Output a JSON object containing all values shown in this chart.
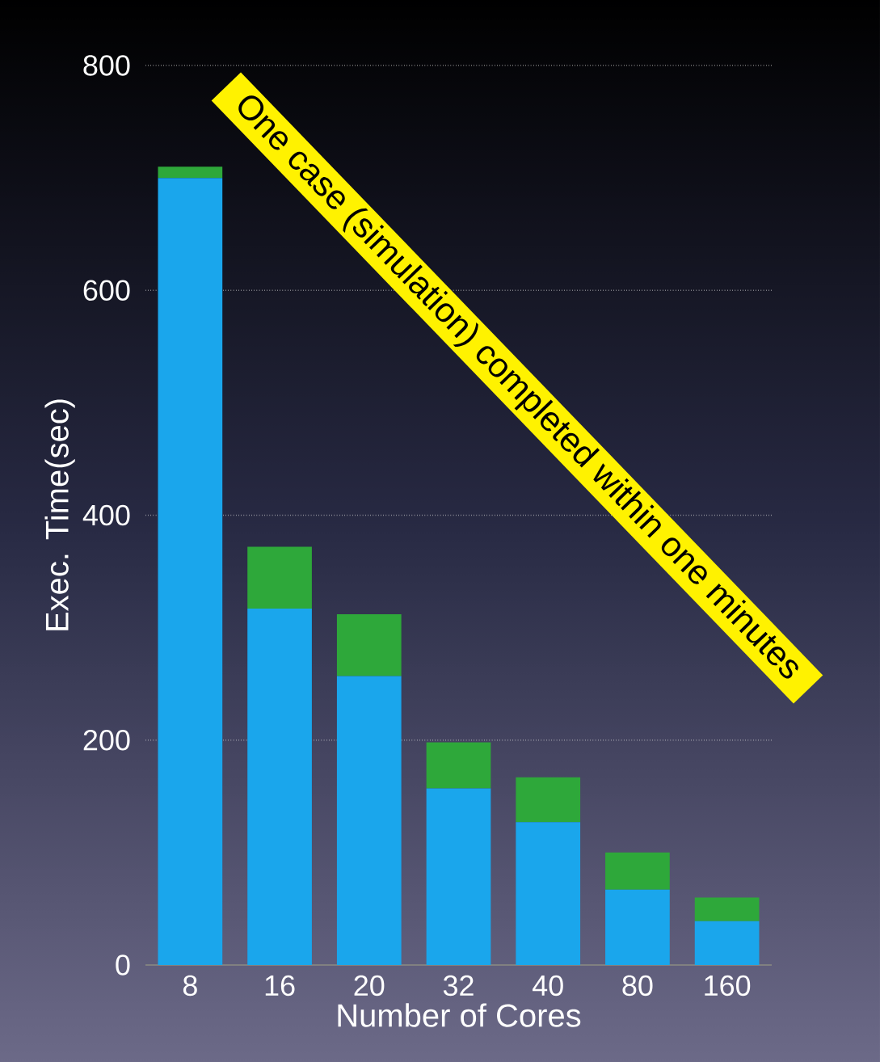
{
  "chart_data": {
    "type": "bar",
    "stacked": true,
    "categories": [
      "8",
      "16",
      "20",
      "32",
      "40",
      "80",
      "160"
    ],
    "series": [
      {
        "color": "#1aa6ec",
        "values": [
          700,
          317,
          257,
          157,
          127,
          67,
          39
        ]
      },
      {
        "color": "#2ea83a",
        "values": [
          10,
          55,
          55,
          41,
          40,
          33,
          21
        ]
      }
    ],
    "ylim": [
      0,
      800
    ],
    "yticks": [
      0,
      200,
      400,
      600,
      800
    ],
    "grid": "y",
    "xlabel": "Number of Cores",
    "ylabel": "Exec. Time(sec)",
    "annotations": [
      "One case (simulation) completed within one minutes"
    ]
  }
}
